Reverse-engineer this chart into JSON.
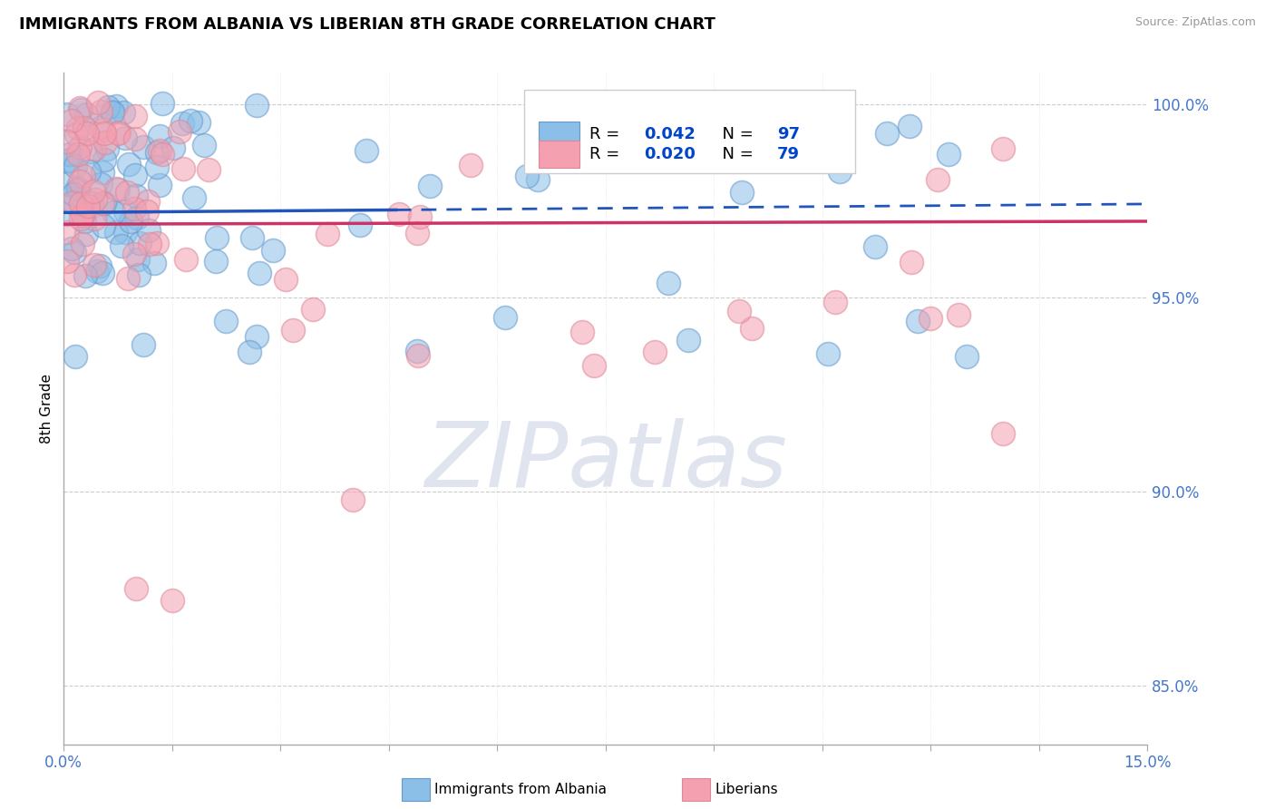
{
  "title": "IMMIGRANTS FROM ALBANIA VS LIBERIAN 8TH GRADE CORRELATION CHART",
  "source": "Source: ZipAtlas.com",
  "ylabel": "8th Grade",
  "xlim": [
    0.0,
    0.15
  ],
  "ylim": [
    0.835,
    1.008
  ],
  "albania_color": "#8BBFE8",
  "albania_edge_color": "#6699CC",
  "liberia_color": "#F4A0B0",
  "liberia_edge_color": "#DD8899",
  "albania_line_color": "#2255BB",
  "liberia_line_color": "#CC3366",
  "albania_R": 0.042,
  "albania_N": 97,
  "liberia_R": 0.02,
  "liberia_N": 79,
  "legend_R_color": "#0044CC",
  "watermark_text": "ZIPatlas",
  "y_ticks": [
    0.85,
    0.9,
    0.95,
    1.0
  ],
  "y_tick_labels": [
    "85.0%",
    "90.0%",
    "95.0%",
    "100.0%"
  ]
}
